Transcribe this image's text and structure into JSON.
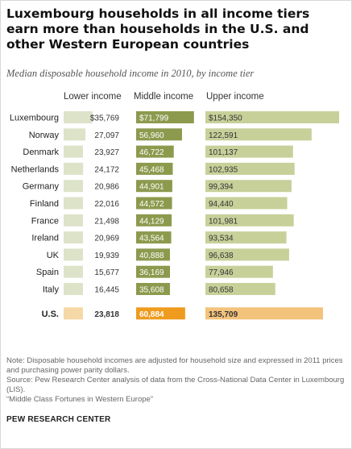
{
  "title": "Luxembourg households in all income tiers earn more than households in the U.S. and other Western European countries",
  "subtitle": "Median disposable household income in 2010, by income tier",
  "notes": [
    "Note: Disposable household incomes are adjusted for household size and expressed in 2011 prices and purchasing power parity dollars.",
    "Source: Pew Research Center analysis of data from the Cross-National Data Center in Luxembourg (LIS).",
    "“Middle Class Fortunes in Western Europe”"
  ],
  "brand": "PEW RESEARCH CENTER",
  "colors": {
    "lower": "#dde3c9",
    "middle": "#8c9a4e",
    "upper": "#c8d09a",
    "us_lower": "#f5d8a6",
    "us_middle": "#ef9b1e",
    "us_upper": "#f3c27b"
  },
  "chart_data": {
    "type": "bar",
    "categories": [
      "Luxembourg",
      "Norway",
      "Denmark",
      "Netherlands",
      "Germany",
      "Finland",
      "France",
      "Ireland",
      "UK",
      "Spain",
      "Italy",
      "U.S."
    ],
    "series": [
      {
        "name": "Lower income",
        "values": [
          35769,
          27097,
          23927,
          24172,
          20986,
          22016,
          21498,
          20969,
          19939,
          15677,
          16445,
          23818
        ],
        "labels": [
          "$35,769",
          "27,097",
          "23,927",
          "24,172",
          "20,986",
          "22,016",
          "21,498",
          "20,969",
          "19,939",
          "15,677",
          "16,445",
          "23,818"
        ]
      },
      {
        "name": "Middle income",
        "values": [
          71799,
          56960,
          46722,
          45468,
          44901,
          44572,
          44129,
          43564,
          40888,
          36169,
          35608,
          60884
        ],
        "labels": [
          "$71,799",
          "56,960",
          "46,722",
          "45,468",
          "44,901",
          "44,572",
          "44,129",
          "43,564",
          "40,888",
          "36,169",
          "35,608",
          "60,884"
        ]
      },
      {
        "name": "Upper income",
        "values": [
          154350,
          122591,
          101137,
          102935,
          99394,
          94440,
          101981,
          93534,
          96638,
          77946,
          80658,
          135709
        ],
        "labels": [
          "$154,350",
          "122,591",
          "101,137",
          "102,935",
          "99,394",
          "94,440",
          "101,981",
          "93,534",
          "96,638",
          "77,946",
          "80,658",
          "135,709"
        ]
      }
    ],
    "highlight_category": "U.S."
  }
}
